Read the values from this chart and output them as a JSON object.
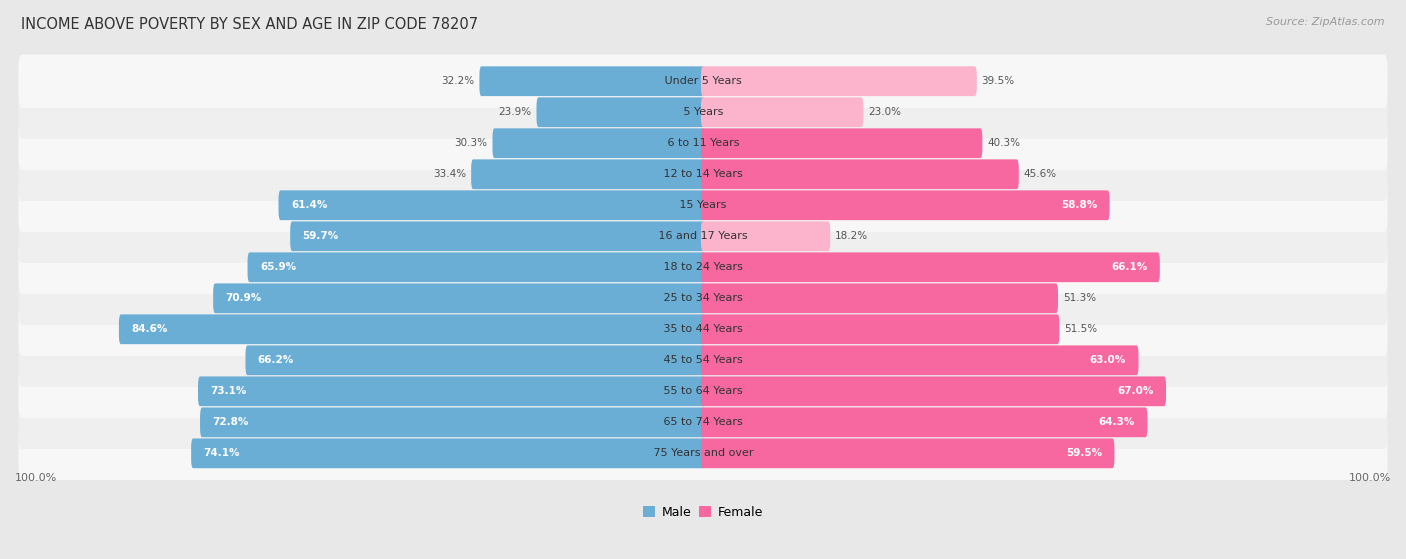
{
  "title": "INCOME ABOVE POVERTY BY SEX AND AGE IN ZIP CODE 78207",
  "source": "Source: ZipAtlas.com",
  "categories": [
    "Under 5 Years",
    "5 Years",
    "6 to 11 Years",
    "12 to 14 Years",
    "15 Years",
    "16 and 17 Years",
    "18 to 24 Years",
    "25 to 34 Years",
    "35 to 44 Years",
    "45 to 54 Years",
    "55 to 64 Years",
    "65 to 74 Years",
    "75 Years and over"
  ],
  "male_values": [
    32.2,
    23.9,
    30.3,
    33.4,
    61.4,
    59.7,
    65.9,
    70.9,
    84.6,
    66.2,
    73.1,
    72.8,
    74.1
  ],
  "female_values": [
    39.5,
    23.0,
    40.3,
    45.6,
    58.8,
    18.2,
    66.1,
    51.3,
    51.5,
    63.0,
    67.0,
    64.3,
    59.5
  ],
  "male_color": "#6aaed6",
  "female_color": "#f768a1",
  "male_color_light": "#aed1e8",
  "female_color_light": "#fbb4cb",
  "background_color": "#e8e8e8",
  "row_color_odd": "#f7f7f7",
  "row_color_even": "#efefef",
  "title_fontsize": 10.5,
  "source_fontsize": 8,
  "label_fontsize": 7.5,
  "category_fontsize": 8,
  "axis_label_fontsize": 8,
  "legend_fontsize": 9,
  "inside_label_threshold": 55,
  "max_val": 100.0
}
